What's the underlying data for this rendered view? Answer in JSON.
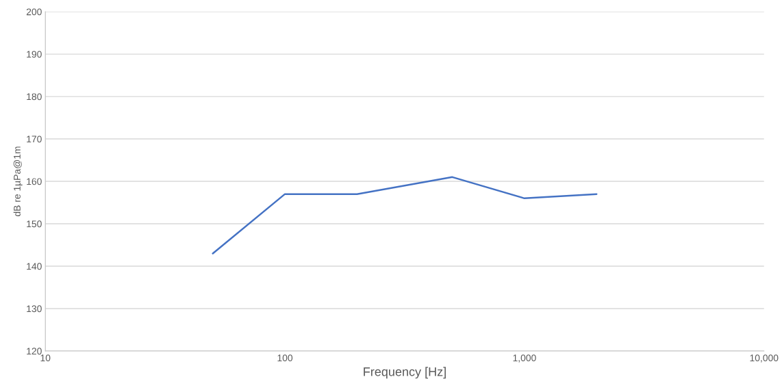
{
  "chart_data": {
    "type": "line",
    "xlabel": "Frequency [Hz]",
    "ylabel": "dB re 1µPa@1m",
    "x": [
      50,
      100,
      200,
      500,
      1000,
      2000
    ],
    "series": [
      {
        "color": "#4472c4",
        "values": [
          143,
          157,
          157,
          161,
          156,
          157
        ]
      }
    ],
    "log": "x",
    "xlim": [
      10,
      10000
    ],
    "xticks": [
      10,
      100,
      {
        "value": 1000,
        "label": "1,000"
      },
      {
        "value": 10000,
        "label": "10,000"
      }
    ],
    "ylim": [
      120,
      200
    ],
    "yticks": [
      120,
      130,
      140,
      150,
      160,
      170,
      180,
      190,
      200
    ],
    "grid": "y",
    "legend": false,
    "marker": "none",
    "line_style": "solid"
  }
}
